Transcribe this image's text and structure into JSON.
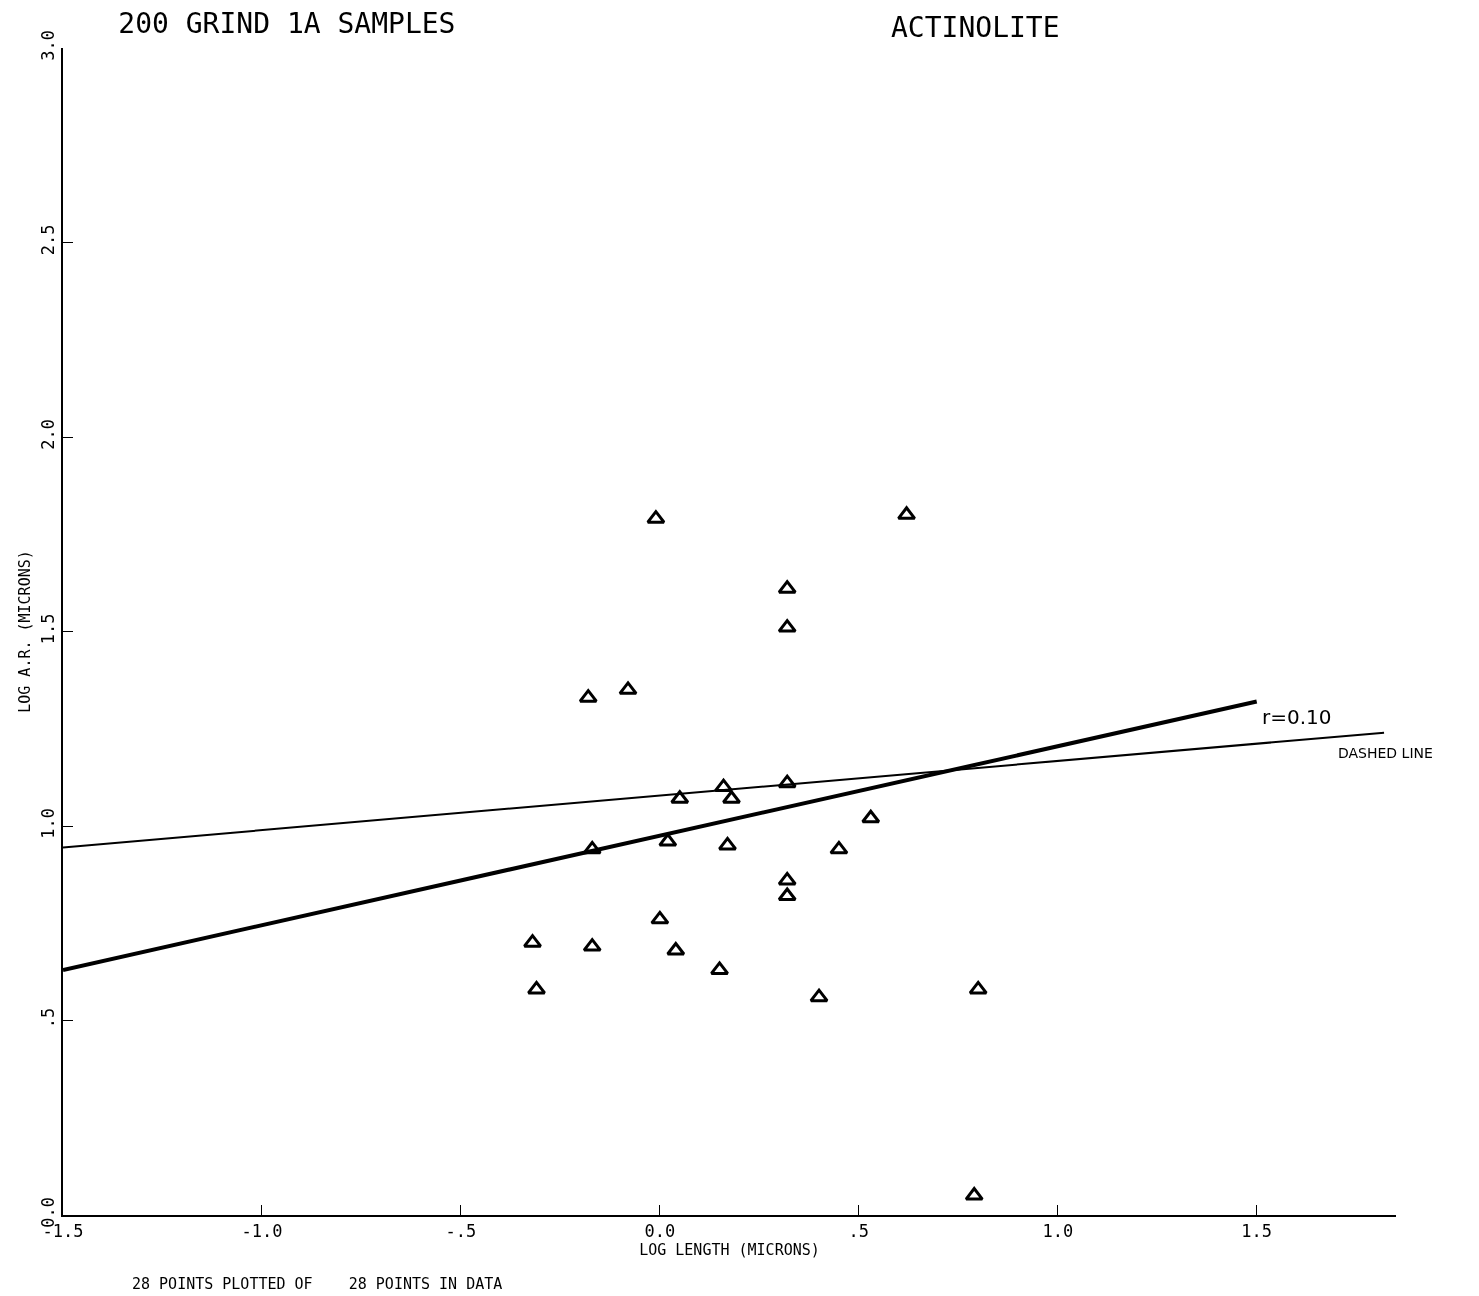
{
  "chart_data": {
    "type": "scatter",
    "title": "200 GRIND 1A SAMPLES",
    "subtitle": "ACTINOLITE",
    "xlabel": "LOG LENGTH (MICRONS)",
    "ylabel": "LOG A.R. (MICRONS)",
    "xlim": [
      -1.5,
      1.85
    ],
    "ylim": [
      0,
      3
    ],
    "xticks": [
      {
        "value": -1.5,
        "label": "-1.5"
      },
      {
        "value": -1,
        "label": "-1.0"
      },
      {
        "value": -0.5,
        "label": "-.5"
      },
      {
        "value": 0,
        "label": "0.0"
      },
      {
        "value": 0.5,
        "label": ".5"
      },
      {
        "value": 1,
        "label": "1.0"
      },
      {
        "value": 1.5,
        "label": "1.5"
      }
    ],
    "yticks": [
      {
        "value": 0,
        "label": "0.0"
      },
      {
        "value": 0.5,
        "label": ".5"
      },
      {
        "value": 1,
        "label": "1.0"
      },
      {
        "value": 1.5,
        "label": "1.5"
      },
      {
        "value": 2,
        "label": "2.0"
      },
      {
        "value": 2.5,
        "label": "2.5"
      },
      {
        "value": 3,
        "label": "3.0"
      }
    ],
    "grid": false,
    "series": [
      {
        "marker": "triangle",
        "color": "#000000",
        "x": [
          -0.01,
          0.62,
          0.32,
          0.32,
          -0.18,
          -0.08,
          0.16,
          0.18,
          0.32,
          0.05,
          0.53,
          -0.17,
          0.02,
          0.17,
          0.45,
          0.32,
          0.32,
          0.0,
          -0.32,
          -0.17,
          0.04,
          0.15,
          -0.31,
          0.4,
          0.8,
          0.79
        ],
        "values": [
          1.79,
          1.8,
          1.61,
          1.51,
          1.33,
          1.35,
          1.1,
          1.07,
          1.11,
          1.07,
          1.02,
          0.94,
          0.96,
          0.95,
          0.94,
          0.86,
          0.82,
          0.76,
          0.7,
          0.69,
          0.68,
          0.63,
          0.58,
          0.56,
          0.58,
          0.05
        ]
      },
      {
        "type": "line",
        "marker": "none",
        "color": "#000000",
        "line_style": "solid",
        "x": [
          -1.5,
          1.5
        ],
        "values": [
          0.63,
          1.32
        ]
      },
      {
        "type": "line",
        "marker": "none",
        "color": "#000000",
        "line_style": "solid",
        "x": [
          -1.5,
          1.82
        ],
        "values": [
          0.945,
          1.24
        ]
      }
    ],
    "annotations": [
      {
        "text": "r=0.10",
        "x": 1.6,
        "y": 1.23
      },
      {
        "text": "DASHED LINE",
        "x": 1.7,
        "y": 1.235
      },
      "28 POINTS PLOTTED OF    28 POINTS IN DATA"
    ]
  }
}
